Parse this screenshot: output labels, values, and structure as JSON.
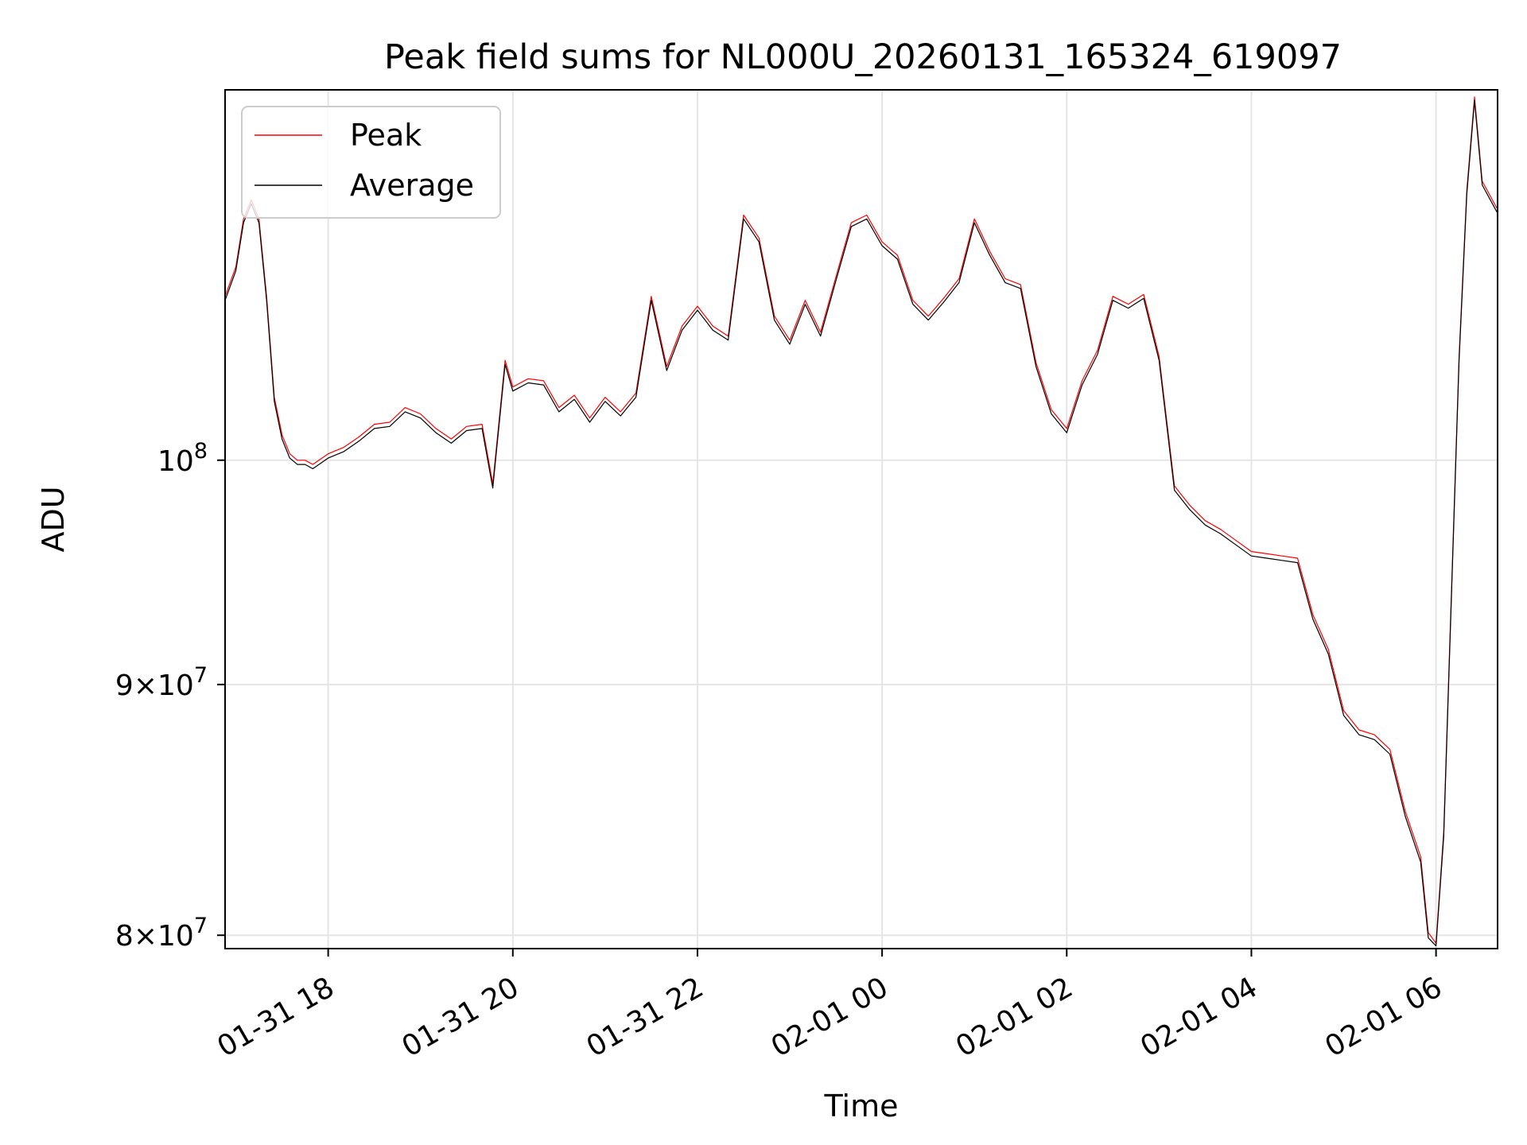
{
  "chart_data": {
    "type": "line",
    "title": "Peak field sums for NL000U_20260131_165324_619097",
    "xlabel": "Time",
    "ylabel": "ADU",
    "y_scale": "log",
    "ylim": [
      79500000,
      119000000
    ],
    "xlim": [
      "2026-01-31T16:53",
      "2026-02-01T06:40"
    ],
    "grid": true,
    "legend_position": "upper left",
    "x_ticks": [
      {
        "value": "2026-01-31T18:00",
        "label": "01-31 18"
      },
      {
        "value": "2026-01-31T20:00",
        "label": "01-31 20"
      },
      {
        "value": "2026-01-31T22:00",
        "label": "01-31 22"
      },
      {
        "value": "2026-02-01T00:00",
        "label": "02-01 00"
      },
      {
        "value": "2026-02-01T02:00",
        "label": "02-01 02"
      },
      {
        "value": "2026-02-01T04:00",
        "label": "02-01 04"
      },
      {
        "value": "2026-02-01T06:00",
        "label": "02-01 06"
      }
    ],
    "y_ticks": [
      {
        "value": 80000000,
        "base": "8",
        "exp": "7"
      },
      {
        "value": 90000000,
        "base": "9",
        "exp": "7"
      },
      {
        "value": 100000000,
        "base": "",
        "exp": "8"
      }
    ],
    "series": [
      {
        "name": "Peak",
        "color": "#ff0000",
        "x": [
          "2026-01-31T16:53",
          "2026-01-31T17:00",
          "2026-01-31T17:05",
          "2026-01-31T17:10",
          "2026-01-31T17:15",
          "2026-01-31T17:20",
          "2026-01-31T17:25",
          "2026-01-31T17:30",
          "2026-01-31T17:35",
          "2026-01-31T17:40",
          "2026-01-31T17:45",
          "2026-01-31T17:50",
          "2026-01-31T18:00",
          "2026-01-31T18:10",
          "2026-01-31T18:20",
          "2026-01-31T18:30",
          "2026-01-31T18:40",
          "2026-01-31T18:50",
          "2026-01-31T19:00",
          "2026-01-31T19:10",
          "2026-01-31T19:20",
          "2026-01-31T19:30",
          "2026-01-31T19:40",
          "2026-01-31T19:47",
          "2026-01-31T19:55",
          "2026-01-31T20:00",
          "2026-01-31T20:10",
          "2026-01-31T20:20",
          "2026-01-31T20:30",
          "2026-01-31T20:40",
          "2026-01-31T20:50",
          "2026-01-31T21:00",
          "2026-01-31T21:10",
          "2026-01-31T21:20",
          "2026-01-31T21:30",
          "2026-01-31T21:40",
          "2026-01-31T21:50",
          "2026-01-31T22:00",
          "2026-01-31T22:10",
          "2026-01-31T22:20",
          "2026-01-31T22:30",
          "2026-01-31T22:40",
          "2026-01-31T22:50",
          "2026-01-31T23:00",
          "2026-01-31T23:10",
          "2026-01-31T23:20",
          "2026-01-31T23:30",
          "2026-01-31T23:40",
          "2026-01-31T23:50",
          "2026-02-01T00:00",
          "2026-02-01T00:10",
          "2026-02-01T00:20",
          "2026-02-01T00:30",
          "2026-02-01T00:40",
          "2026-02-01T00:50",
          "2026-02-01T01:00",
          "2026-02-01T01:10",
          "2026-02-01T01:20",
          "2026-02-01T01:30",
          "2026-02-01T01:40",
          "2026-02-01T01:50",
          "2026-02-01T02:00",
          "2026-02-01T02:10",
          "2026-02-01T02:20",
          "2026-02-01T02:30",
          "2026-02-01T02:40",
          "2026-02-01T02:50",
          "2026-02-01T03:00",
          "2026-02-01T03:10",
          "2026-02-01T03:20",
          "2026-02-01T03:30",
          "2026-02-01T03:40",
          "2026-02-01T03:50",
          "2026-02-01T04:00",
          "2026-02-01T04:10",
          "2026-02-01T04:20",
          "2026-02-01T04:30",
          "2026-02-01T04:40",
          "2026-02-01T04:50",
          "2026-02-01T05:00",
          "2026-02-01T05:10",
          "2026-02-01T05:20",
          "2026-02-01T05:30",
          "2026-02-01T05:40",
          "2026-02-01T05:50",
          "2026-02-01T05:55",
          "2026-02-01T06:00",
          "2026-02-01T06:05",
          "2026-02-01T06:10",
          "2026-02-01T06:15",
          "2026-02-01T06:20",
          "2026-02-01T06:25",
          "2026-02-01T06:30",
          "2026-02-01T06:40"
        ],
        "values": [
          108000000,
          109500000,
          112000000,
          113000000,
          112000000,
          108000000,
          103000000,
          101200000,
          100300000,
          100000000,
          100000000,
          99800000,
          100300000,
          100600000,
          101100000,
          101700000,
          101800000,
          102500000,
          102200000,
          101500000,
          101000000,
          101600000,
          101700000,
          98900000,
          104800000,
          103500000,
          103900000,
          103800000,
          102500000,
          103100000,
          102000000,
          103000000,
          102300000,
          103200000,
          108000000,
          104500000,
          106500000,
          107500000,
          106500000,
          106000000,
          112200000,
          111000000,
          107000000,
          105800000,
          107800000,
          106200000,
          109000000,
          111800000,
          112200000,
          110800000,
          110100000,
          107800000,
          107000000,
          107900000,
          108900000,
          112000000,
          110300000,
          108900000,
          108600000,
          104700000,
          102400000,
          101500000,
          103800000,
          105300000,
          108000000,
          107600000,
          108100000,
          105000000,
          98800000,
          97900000,
          97200000,
          96800000,
          96300000,
          95800000,
          95700000,
          95600000,
          95500000,
          93000000,
          91500000,
          88900000,
          88100000,
          87900000,
          87300000,
          84800000,
          83000000,
          80100000,
          79700000,
          84000000,
          94000000,
          105000000,
          113500000,
          118600000,
          114000000,
          112500000
        ],
        "width": 1.2
      },
      {
        "name": "Average",
        "color": "#000000",
        "x": [
          "2026-01-31T16:53",
          "2026-01-31T17:00",
          "2026-01-31T17:05",
          "2026-01-31T17:10",
          "2026-01-31T17:15",
          "2026-01-31T17:20",
          "2026-01-31T17:25",
          "2026-01-31T17:30",
          "2026-01-31T17:35",
          "2026-01-31T17:40",
          "2026-01-31T17:45",
          "2026-01-31T17:50",
          "2026-01-31T18:00",
          "2026-01-31T18:10",
          "2026-01-31T18:20",
          "2026-01-31T18:30",
          "2026-01-31T18:40",
          "2026-01-31T18:50",
          "2026-01-31T19:00",
          "2026-01-31T19:10",
          "2026-01-31T19:20",
          "2026-01-31T19:30",
          "2026-01-31T19:40",
          "2026-01-31T19:47",
          "2026-01-31T19:55",
          "2026-01-31T20:00",
          "2026-01-31T20:10",
          "2026-01-31T20:20",
          "2026-01-31T20:30",
          "2026-01-31T20:40",
          "2026-01-31T20:50",
          "2026-01-31T21:00",
          "2026-01-31T21:10",
          "2026-01-31T21:20",
          "2026-01-31T21:30",
          "2026-01-31T21:40",
          "2026-01-31T21:50",
          "2026-01-31T22:00",
          "2026-01-31T22:10",
          "2026-01-31T22:20",
          "2026-01-31T22:30",
          "2026-01-31T22:40",
          "2026-01-31T22:50",
          "2026-01-31T23:00",
          "2026-01-31T23:10",
          "2026-01-31T23:20",
          "2026-01-31T23:30",
          "2026-01-31T23:40",
          "2026-01-31T23:50",
          "2026-02-01T00:00",
          "2026-02-01T00:10",
          "2026-02-01T00:20",
          "2026-02-01T00:30",
          "2026-02-01T00:40",
          "2026-02-01T00:50",
          "2026-02-01T01:00",
          "2026-02-01T01:10",
          "2026-02-01T01:20",
          "2026-02-01T01:30",
          "2026-02-01T01:40",
          "2026-02-01T01:50",
          "2026-02-01T02:00",
          "2026-02-01T02:10",
          "2026-02-01T02:20",
          "2026-02-01T02:30",
          "2026-02-01T02:40",
          "2026-02-01T02:50",
          "2026-02-01T03:00",
          "2026-02-01T03:10",
          "2026-02-01T03:20",
          "2026-02-01T03:30",
          "2026-02-01T03:40",
          "2026-02-01T03:50",
          "2026-02-01T04:00",
          "2026-02-01T04:10",
          "2026-02-01T04:20",
          "2026-02-01T04:30",
          "2026-02-01T04:40",
          "2026-02-01T04:50",
          "2026-02-01T05:00",
          "2026-02-01T05:10",
          "2026-02-01T05:20",
          "2026-02-01T05:30",
          "2026-02-01T05:40",
          "2026-02-01T05:50",
          "2026-02-01T05:55",
          "2026-02-01T06:00",
          "2026-02-01T06:05",
          "2026-02-01T06:10",
          "2026-02-01T06:15",
          "2026-02-01T06:20",
          "2026-02-01T06:25",
          "2026-02-01T06:30",
          "2026-02-01T06:40"
        ],
        "values": [
          107800000,
          109300000,
          111800000,
          112800000,
          111800000,
          107800000,
          102800000,
          101000000,
          100100000,
          99800000,
          99800000,
          99600000,
          100100000,
          100400000,
          100900000,
          101500000,
          101600000,
          102300000,
          102000000,
          101300000,
          100800000,
          101400000,
          101500000,
          98700000,
          104600000,
          103300000,
          103700000,
          103600000,
          102300000,
          102900000,
          101800000,
          102800000,
          102100000,
          103000000,
          107800000,
          104300000,
          106300000,
          107300000,
          106300000,
          105800000,
          112000000,
          110800000,
          106800000,
          105600000,
          107600000,
          106000000,
          108800000,
          111600000,
          112000000,
          110600000,
          109900000,
          107600000,
          106800000,
          107700000,
          108700000,
          111800000,
          110100000,
          108700000,
          108400000,
          104500000,
          102200000,
          101300000,
          103600000,
          105100000,
          107800000,
          107400000,
          107900000,
          104800000,
          98600000,
          97700000,
          97000000,
          96600000,
          96100000,
          95600000,
          95500000,
          95400000,
          95300000,
          92800000,
          91300000,
          88700000,
          87900000,
          87700000,
          87100000,
          84600000,
          82800000,
          79900000,
          79600000,
          83800000,
          93800000,
          104800000,
          113300000,
          118400000,
          113800000,
          112300000
        ],
        "width": 1.2
      }
    ]
  }
}
